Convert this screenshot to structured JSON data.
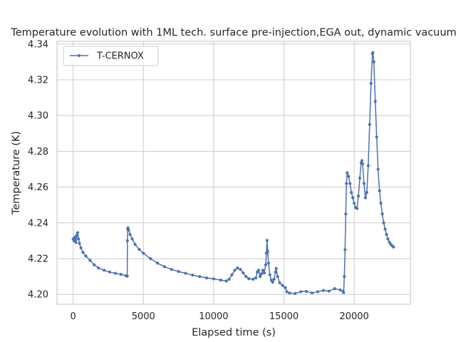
{
  "chart_data": {
    "type": "line",
    "title": "Temperature evolution with 1ML tech. surface pre-injection,EGA out, dynamic vacuum",
    "xlabel": "Elapsed time (s)",
    "ylabel": "Temperature (K)",
    "xlim": [
      -1150,
      24000
    ],
    "ylim": [
      4.1945,
      4.3415
    ],
    "xticks": [
      0,
      5000,
      10000,
      15000,
      20000
    ],
    "xtick_labels": [
      "0",
      "5000",
      "10000",
      "15000",
      "20000"
    ],
    "yticks": [
      4.2,
      4.22,
      4.24,
      4.26,
      4.28,
      4.3,
      4.32,
      4.34
    ],
    "ytick_labels": [
      "4.20",
      "4.22",
      "4.24",
      "4.26",
      "4.28",
      "4.30",
      "4.32",
      "4.34"
    ],
    "grid": true,
    "legend": {
      "placement": "top-left"
    },
    "colors": {
      "series": "#4c72b0",
      "grid": "#cccccc",
      "spine": "#cccccc"
    },
    "series": [
      {
        "name": "T-CERNOX",
        "marker": "circle",
        "points": [
          [
            0,
            4.231
          ],
          [
            60,
            4.23
          ],
          [
            120,
            4.232
          ],
          [
            200,
            4.229
          ],
          [
            260,
            4.233
          ],
          [
            320,
            4.2345
          ],
          [
            380,
            4.231
          ],
          [
            450,
            4.2285
          ],
          [
            550,
            4.226
          ],
          [
            700,
            4.2235
          ],
          [
            900,
            4.2215
          ],
          [
            1200,
            4.219
          ],
          [
            1500,
            4.2165
          ],
          [
            1800,
            4.2148
          ],
          [
            2200,
            4.2135
          ],
          [
            2600,
            4.2125
          ],
          [
            3000,
            4.2118
          ],
          [
            3400,
            4.2112
          ],
          [
            3750,
            4.2105
          ],
          [
            3850,
            4.2102
          ],
          [
            3860,
            4.23
          ],
          [
            3880,
            4.2365
          ],
          [
            3900,
            4.2372
          ],
          [
            3950,
            4.236
          ],
          [
            4050,
            4.2335
          ],
          [
            4200,
            4.231
          ],
          [
            4400,
            4.228
          ],
          [
            4700,
            4.2252
          ],
          [
            5000,
            4.223
          ],
          [
            5500,
            4.22
          ],
          [
            6000,
            4.2175
          ],
          [
            6500,
            4.2155
          ],
          [
            7000,
            4.214
          ],
          [
            7500,
            4.2128
          ],
          [
            8000,
            4.2118
          ],
          [
            8500,
            4.2108
          ],
          [
            9000,
            4.21
          ],
          [
            9500,
            4.2092
          ],
          [
            10000,
            4.2087
          ],
          [
            10500,
            4.208
          ],
          [
            10900,
            4.2075
          ],
          [
            11100,
            4.2085
          ],
          [
            11300,
            4.211
          ],
          [
            11500,
            4.2135
          ],
          [
            11700,
            4.2148
          ],
          [
            11900,
            4.214
          ],
          [
            12100,
            4.212
          ],
          [
            12300,
            4.21
          ],
          [
            12500,
            4.2088
          ],
          [
            12800,
            4.2085
          ],
          [
            13000,
            4.2092
          ],
          [
            13100,
            4.2125
          ],
          [
            13200,
            4.2135
          ],
          [
            13300,
            4.21
          ],
          [
            13400,
            4.2115
          ],
          [
            13500,
            4.2135
          ],
          [
            13600,
            4.212
          ],
          [
            13700,
            4.2165
          ],
          [
            13750,
            4.223
          ],
          [
            13800,
            4.2302
          ],
          [
            13850,
            4.224
          ],
          [
            13900,
            4.2175
          ],
          [
            14000,
            4.211
          ],
          [
            14100,
            4.208
          ],
          [
            14200,
            4.2068
          ],
          [
            14300,
            4.2085
          ],
          [
            14400,
            4.2125
          ],
          [
            14450,
            4.2145
          ],
          [
            14550,
            4.21
          ],
          [
            14700,
            4.2065
          ],
          [
            14900,
            4.205
          ],
          [
            15100,
            4.2038
          ],
          [
            15200,
            4.2015
          ],
          [
            15400,
            4.2008
          ],
          [
            15800,
            4.2005
          ],
          [
            16200,
            4.2015
          ],
          [
            16600,
            4.2017
          ],
          [
            17000,
            4.2008
          ],
          [
            17400,
            4.2015
          ],
          [
            17800,
            4.2022
          ],
          [
            18200,
            4.2018
          ],
          [
            18600,
            4.2032
          ],
          [
            19000,
            4.2025
          ],
          [
            19200,
            4.2018
          ],
          [
            19250,
            4.201
          ],
          [
            19300,
            4.21
          ],
          [
            19350,
            4.225
          ],
          [
            19400,
            4.245
          ],
          [
            19450,
            4.262
          ],
          [
            19500,
            4.268
          ],
          [
            19600,
            4.266
          ],
          [
            19700,
            4.262
          ],
          [
            19800,
            4.257
          ],
          [
            19900,
            4.254
          ],
          [
            20000,
            4.251
          ],
          [
            20100,
            4.2485
          ],
          [
            20200,
            4.248
          ],
          [
            20300,
            4.255
          ],
          [
            20400,
            4.265
          ],
          [
            20500,
            4.2735
          ],
          [
            20550,
            4.2748
          ],
          [
            20600,
            4.273
          ],
          [
            20700,
            4.262
          ],
          [
            20800,
            4.254
          ],
          [
            20900,
            4.257
          ],
          [
            21000,
            4.272
          ],
          [
            21100,
            4.295
          ],
          [
            21200,
            4.318
          ],
          [
            21300,
            4.3345
          ],
          [
            21330,
            4.3352
          ],
          [
            21400,
            4.33
          ],
          [
            21500,
            4.308
          ],
          [
            21600,
            4.288
          ],
          [
            21700,
            4.27
          ],
          [
            21800,
            4.258
          ],
          [
            21900,
            4.251
          ],
          [
            22000,
            4.245
          ],
          [
            22100,
            4.24
          ],
          [
            22200,
            4.2365
          ],
          [
            22300,
            4.2335
          ],
          [
            22400,
            4.231
          ],
          [
            22500,
            4.2292
          ],
          [
            22600,
            4.228
          ],
          [
            22700,
            4.2272
          ],
          [
            22800,
            4.2265
          ]
        ]
      }
    ]
  }
}
